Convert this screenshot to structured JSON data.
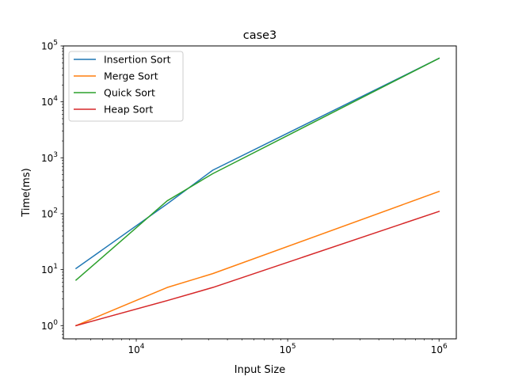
{
  "chart_data": {
    "type": "line",
    "title": "case3",
    "xlabel": "Input Size",
    "ylabel": "Time(ms)",
    "xscale": "log",
    "yscale": "log",
    "xlim": [
      3300,
      1300000
    ],
    "ylim": [
      0.58,
      100000
    ],
    "xticks": [
      {
        "value": 10000,
        "base": "10",
        "exp": "4"
      },
      {
        "value": 100000,
        "base": "10",
        "exp": "5"
      },
      {
        "value": 1000000,
        "base": "10",
        "exp": "6"
      }
    ],
    "yticks": [
      {
        "value": 1,
        "base": "10",
        "exp": "0"
      },
      {
        "value": 10,
        "base": "10",
        "exp": "1"
      },
      {
        "value": 100,
        "base": "10",
        "exp": "2"
      },
      {
        "value": 1000,
        "base": "10",
        "exp": "3"
      },
      {
        "value": 10000,
        "base": "10",
        "exp": "4"
      },
      {
        "value": 100000,
        "base": "10",
        "exp": "5"
      }
    ],
    "grid": false,
    "legend_position": "upper-left",
    "x": [
      4000,
      16000,
      32000,
      1000000
    ],
    "series": [
      {
        "name": "Insertion Sort",
        "color": "#1f77b4",
        "values": [
          10.5,
          150,
          600,
          60000
        ]
      },
      {
        "name": "Merge Sort",
        "color": "#ff7f0e",
        "values": [
          1,
          4.8,
          8.5,
          250
        ]
      },
      {
        "name": "Quick Sort",
        "color": "#2ca02c",
        "values": [
          6.5,
          170,
          520,
          60000
        ]
      },
      {
        "name": "Heap Sort",
        "color": "#d62728",
        "values": [
          1,
          2.8,
          4.8,
          110
        ]
      }
    ]
  }
}
